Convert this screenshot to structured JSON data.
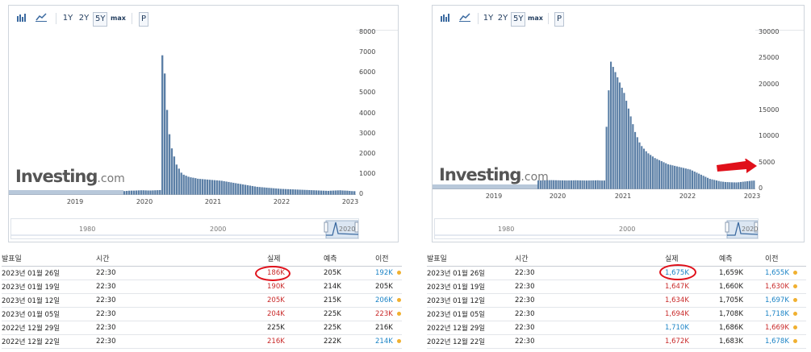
{
  "toolbar": {
    "btn_1y": "1Y",
    "btn_2y": "2Y",
    "btn_5y": "5Y",
    "btn_max": "max",
    "btn_p": "P"
  },
  "left": {
    "y_ticks": [
      "8000",
      "7000",
      "6000",
      "5000",
      "4000",
      "3000",
      "2000",
      "1000",
      "0"
    ],
    "x_labels": [
      "2019",
      "2020",
      "2021",
      "2022",
      "2023"
    ],
    "nav_labels": [
      "1980",
      "2000",
      "2020"
    ],
    "table": {
      "headers": [
        "발표일",
        "시간",
        "실제",
        "예측",
        "이전"
      ],
      "rows": [
        {
          "date": "2023년 01월 26일",
          "time": "22:30",
          "actual": "186K",
          "actual_color": "red",
          "forecast": "205K",
          "prev": "192K",
          "prev_color": "blue",
          "dot": true
        },
        {
          "date": "2023년 01월 19일",
          "time": "22:30",
          "actual": "190K",
          "actual_color": "red",
          "forecast": "214K",
          "prev": "205K",
          "prev_color": "",
          "dot": false
        },
        {
          "date": "2023년 01월 12일",
          "time": "22:30",
          "actual": "205K",
          "actual_color": "red",
          "forecast": "215K",
          "prev": "206K",
          "prev_color": "blue",
          "dot": true
        },
        {
          "date": "2023년 01월 05일",
          "time": "22:30",
          "actual": "204K",
          "actual_color": "red",
          "forecast": "225K",
          "prev": "223K",
          "prev_color": "red",
          "dot": true
        },
        {
          "date": "2022년 12월 29일",
          "time": "22:30",
          "actual": "225K",
          "actual_color": "",
          "forecast": "225K",
          "prev": "216K",
          "prev_color": "",
          "dot": false
        },
        {
          "date": "2022년 12월 22일",
          "time": "22:30",
          "actual": "216K",
          "actual_color": "red",
          "forecast": "222K",
          "prev": "214K",
          "prev_color": "blue",
          "dot": true
        }
      ]
    },
    "chart_data": {
      "type": "bar",
      "xlim": [
        "2018-01",
        "2023-01"
      ],
      "ylim": [
        0,
        8000
      ],
      "series": [
        {
          "values": [
            190,
            200,
            210,
            215,
            215,
            220,
            225,
            230,
            230,
            225,
            220,
            220,
            225,
            230,
            235,
            240,
            6900,
            6000,
            4200,
            3000,
            2300,
            1900,
            1500,
            1300,
            1100,
            1000,
            950,
            900,
            870,
            850,
            830,
            800,
            790,
            780,
            770,
            760,
            750,
            740,
            730,
            720,
            710,
            700,
            680,
            660,
            640,
            620,
            600,
            580,
            560,
            540,
            520,
            500,
            480,
            460,
            440,
            420,
            400,
            390,
            380,
            370,
            360,
            350,
            340,
            330,
            320,
            310,
            300,
            295,
            290,
            285,
            280,
            275,
            270,
            265,
            260,
            255,
            250,
            245,
            240,
            235,
            230,
            225,
            220,
            215,
            210,
            205,
            200,
            210,
            215,
            220,
            225,
            230,
            220,
            215,
            210,
            200,
            190,
            186
          ]
        }
      ],
      "color": "#5b7fa6"
    }
  },
  "right": {
    "y_ticks": [
      "30000",
      "25000",
      "20000",
      "15000",
      "10000",
      "5000",
      "0"
    ],
    "x_labels": [
      "2019",
      "2020",
      "2021",
      "2022",
      "2023"
    ],
    "nav_labels": [
      "1980",
      "2000",
      "2020"
    ],
    "table": {
      "headers": [
        "발표일",
        "시간",
        "실제",
        "예측",
        "이전"
      ],
      "rows": [
        {
          "date": "2023년 01월 26일",
          "time": "22:30",
          "actual": "1,675K",
          "actual_color": "blue",
          "forecast": "1,659K",
          "prev": "1,655K",
          "prev_color": "blue",
          "dot": true
        },
        {
          "date": "2023년 01월 19일",
          "time": "22:30",
          "actual": "1,647K",
          "actual_color": "red",
          "forecast": "1,660K",
          "prev": "1,630K",
          "prev_color": "red",
          "dot": true
        },
        {
          "date": "2023년 01월 12일",
          "time": "22:30",
          "actual": "1,634K",
          "actual_color": "red",
          "forecast": "1,705K",
          "prev": "1,697K",
          "prev_color": "blue",
          "dot": true
        },
        {
          "date": "2023년 01월 05일",
          "time": "22:30",
          "actual": "1,694K",
          "actual_color": "red",
          "forecast": "1,708K",
          "prev": "1,718K",
          "prev_color": "blue",
          "dot": true
        },
        {
          "date": "2022년 12월 29일",
          "time": "22:30",
          "actual": "1,710K",
          "actual_color": "blue",
          "forecast": "1,686K",
          "prev": "1,669K",
          "prev_color": "red",
          "dot": true
        },
        {
          "date": "2022년 12월 22일",
          "time": "22:30",
          "actual": "1,672K",
          "actual_color": "red",
          "forecast": "1,683K",
          "prev": "1,678K",
          "prev_color": "blue",
          "dot": true
        }
      ]
    },
    "chart_data": {
      "type": "bar",
      "xlim": [
        "2018-01",
        "2023-01"
      ],
      "ylim": [
        0,
        30000
      ],
      "series": [
        {
          "values": [
            1700,
            1700,
            1720,
            1740,
            1750,
            1750,
            1760,
            1750,
            1740,
            1730,
            1720,
            1710,
            1700,
            1690,
            1700,
            1710,
            1720,
            1730,
            1720,
            1710,
            1700,
            1690,
            1680,
            1690,
            1700,
            1710,
            1720,
            1730,
            1700,
            1680,
            1690,
            12000,
            19000,
            24500,
            23500,
            22500,
            21500,
            20500,
            19500,
            18500,
            17000,
            15500,
            14000,
            12500,
            11000,
            10000,
            9000,
            8300,
            7800,
            7300,
            6900,
            6600,
            6300,
            6000,
            5800,
            5600,
            5400,
            5200,
            5000,
            4800,
            4700,
            4600,
            4500,
            4400,
            4300,
            4200,
            4100,
            4000,
            3900,
            3800,
            3600,
            3400,
            3200,
            3000,
            2800,
            2600,
            2400,
            2200,
            2000,
            1900,
            1800,
            1700,
            1600,
            1500,
            1450,
            1400,
            1380,
            1360,
            1340,
            1330,
            1320,
            1350,
            1400,
            1450,
            1500,
            1550,
            1600,
            1650,
            1675
          ]
        }
      ],
      "color": "#5b7fa6"
    }
  },
  "colors": {
    "bar": "#5b7fa6",
    "accent_red": "#e0101a",
    "pre_bar": "#b8c8da"
  }
}
